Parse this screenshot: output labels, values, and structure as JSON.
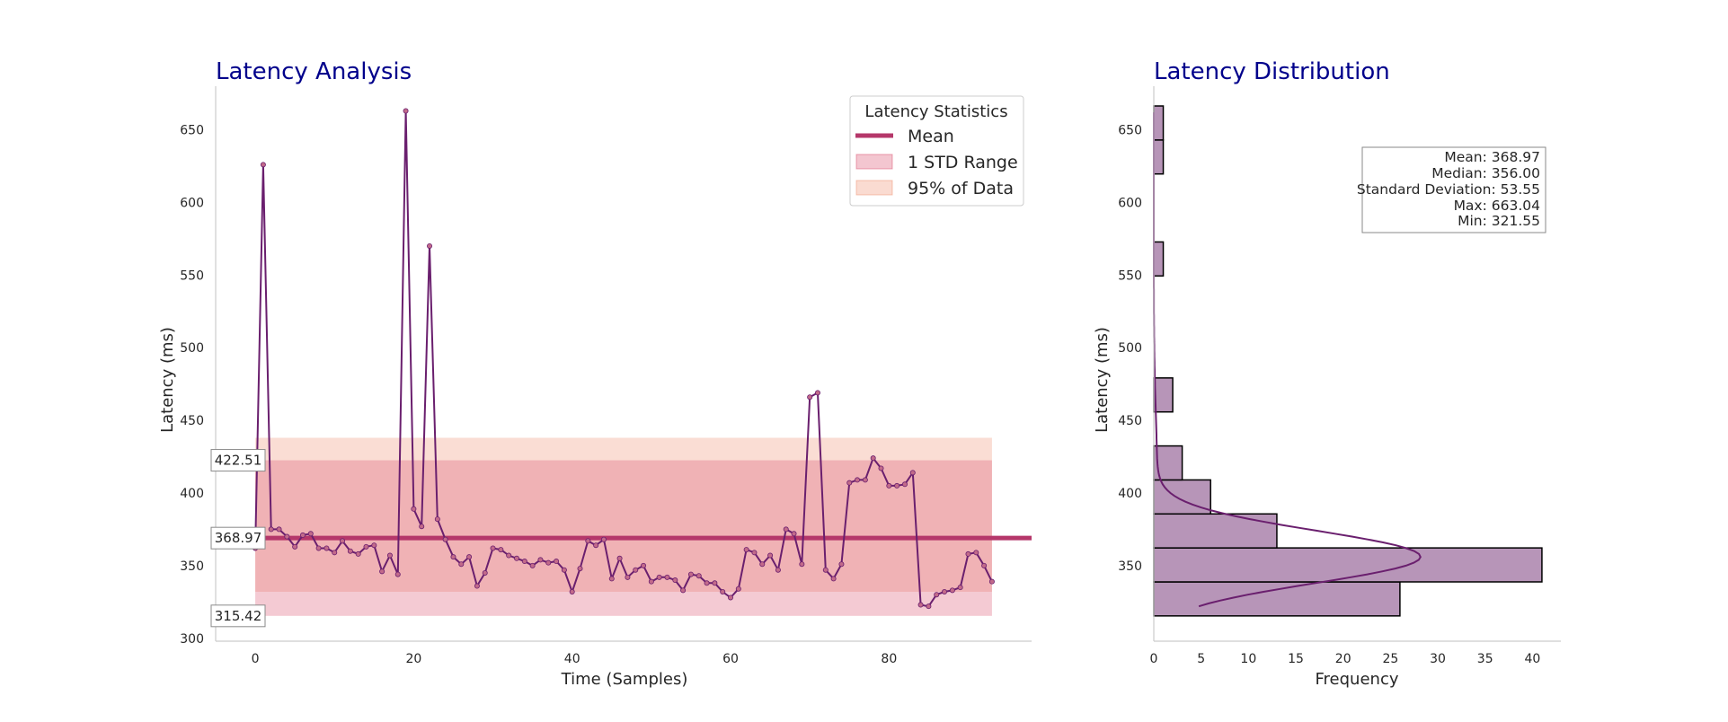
{
  "chart_data": [
    {
      "type": "line",
      "title": "Latency Analysis",
      "xlabel": "Time (Samples)",
      "ylabel": "Latency (ms)",
      "xlim": [
        -5,
        98
      ],
      "ylim": [
        298,
        680
      ],
      "xticks": [
        0,
        20,
        40,
        60,
        80
      ],
      "yticks": [
        300,
        350,
        400,
        450,
        500,
        550,
        600,
        650
      ],
      "grid": false,
      "legend": {
        "title": "Latency Statistics",
        "position": "top-right",
        "entries": [
          "Mean",
          "1 STD Range",
          "95% of Data"
        ]
      },
      "series": [
        {
          "name": "Latency",
          "color": "#6a1f6e",
          "x": [
            0,
            1,
            2,
            3,
            4,
            5,
            6,
            7,
            8,
            9,
            10,
            11,
            12,
            13,
            14,
            15,
            16,
            17,
            18,
            19,
            20,
            21,
            22,
            23,
            24,
            25,
            26,
            27,
            28,
            29,
            30,
            31,
            32,
            33,
            34,
            35,
            36,
            37,
            38,
            39,
            40,
            41,
            42,
            43,
            44,
            45,
            46,
            47,
            48,
            49,
            50,
            51,
            52,
            53,
            54,
            55,
            56,
            57,
            58,
            59,
            60,
            61,
            62,
            63,
            64,
            65,
            66,
            67,
            68,
            69,
            70,
            71,
            72,
            73,
            74,
            75,
            76,
            77,
            78,
            79,
            80,
            81,
            82,
            83,
            84,
            85,
            86,
            87,
            88,
            89,
            90,
            91,
            92,
            93
          ],
          "values": [
            362,
            626,
            375,
            375,
            370,
            363,
            371,
            372,
            362,
            362,
            359,
            367,
            360,
            358,
            363,
            364,
            346,
            357,
            344,
            663,
            389,
            377,
            570,
            382,
            368,
            356,
            351,
            356,
            336,
            345,
            362,
            361,
            357,
            355,
            353,
            350,
            354,
            352,
            353,
            347,
            332,
            348,
            367,
            364,
            368,
            341,
            355,
            342,
            347,
            350,
            339,
            342,
            342,
            340,
            333,
            344,
            343,
            338,
            338,
            332,
            328,
            334,
            361,
            359,
            351,
            357,
            347,
            375,
            372,
            351,
            466,
            469,
            347,
            341,
            351,
            407,
            409,
            409,
            424,
            417,
            405,
            405,
            406,
            414,
            323,
            322,
            330,
            332,
            333,
            335,
            358,
            359,
            350,
            339
          ]
        }
      ],
      "mean": 368.97,
      "std_range": [
        315.42,
        422.51
      ],
      "range_95": [
        332,
        438
      ],
      "annotations": [
        "422.51",
        "368.97",
        "315.42"
      ],
      "colors": {
        "mean": "#b5376a",
        "std_band": "#d94f6e",
        "band_95": "#ee9070"
      }
    },
    {
      "type": "bar",
      "orientation": "horizontal",
      "title": "Latency Distribution",
      "xlabel": "Frequency",
      "ylabel": "Latency (ms)",
      "xlim": [
        0,
        43
      ],
      "ylim": [
        298,
        680
      ],
      "xticks": [
        0,
        5,
        10,
        15,
        20,
        25,
        30,
        35,
        40
      ],
      "yticks": [
        350,
        400,
        450,
        500,
        550,
        600,
        650
      ],
      "grid": false,
      "bins": [
        {
          "from": 315.4,
          "to": 338.8,
          "count": 26
        },
        {
          "from": 338.8,
          "to": 362.2,
          "count": 41
        },
        {
          "from": 362.2,
          "to": 385.6,
          "count": 13
        },
        {
          "from": 385.6,
          "to": 409.0,
          "count": 6
        },
        {
          "from": 409.0,
          "to": 432.4,
          "count": 3
        },
        {
          "from": 455.8,
          "to": 479.2,
          "count": 2
        },
        {
          "from": 549.4,
          "to": 572.8,
          "count": 1
        },
        {
          "from": 619.6,
          "to": 643.0,
          "count": 1
        },
        {
          "from": 643.0,
          "to": 666.4,
          "count": 1
        }
      ],
      "kde": {
        "mean": 356,
        "sd": 18,
        "peak": 28,
        "y_from": 322,
        "y_to": 663
      },
      "stats_box": {
        "lines": [
          "Mean: 368.97",
          "Median: 356.00",
          "Standard Deviation: 53.55",
          "Max: 663.04",
          "Min: 321.55"
        ]
      },
      "colors": {
        "bar": "#b795b8",
        "kde": "#6a1f6e"
      }
    }
  ]
}
